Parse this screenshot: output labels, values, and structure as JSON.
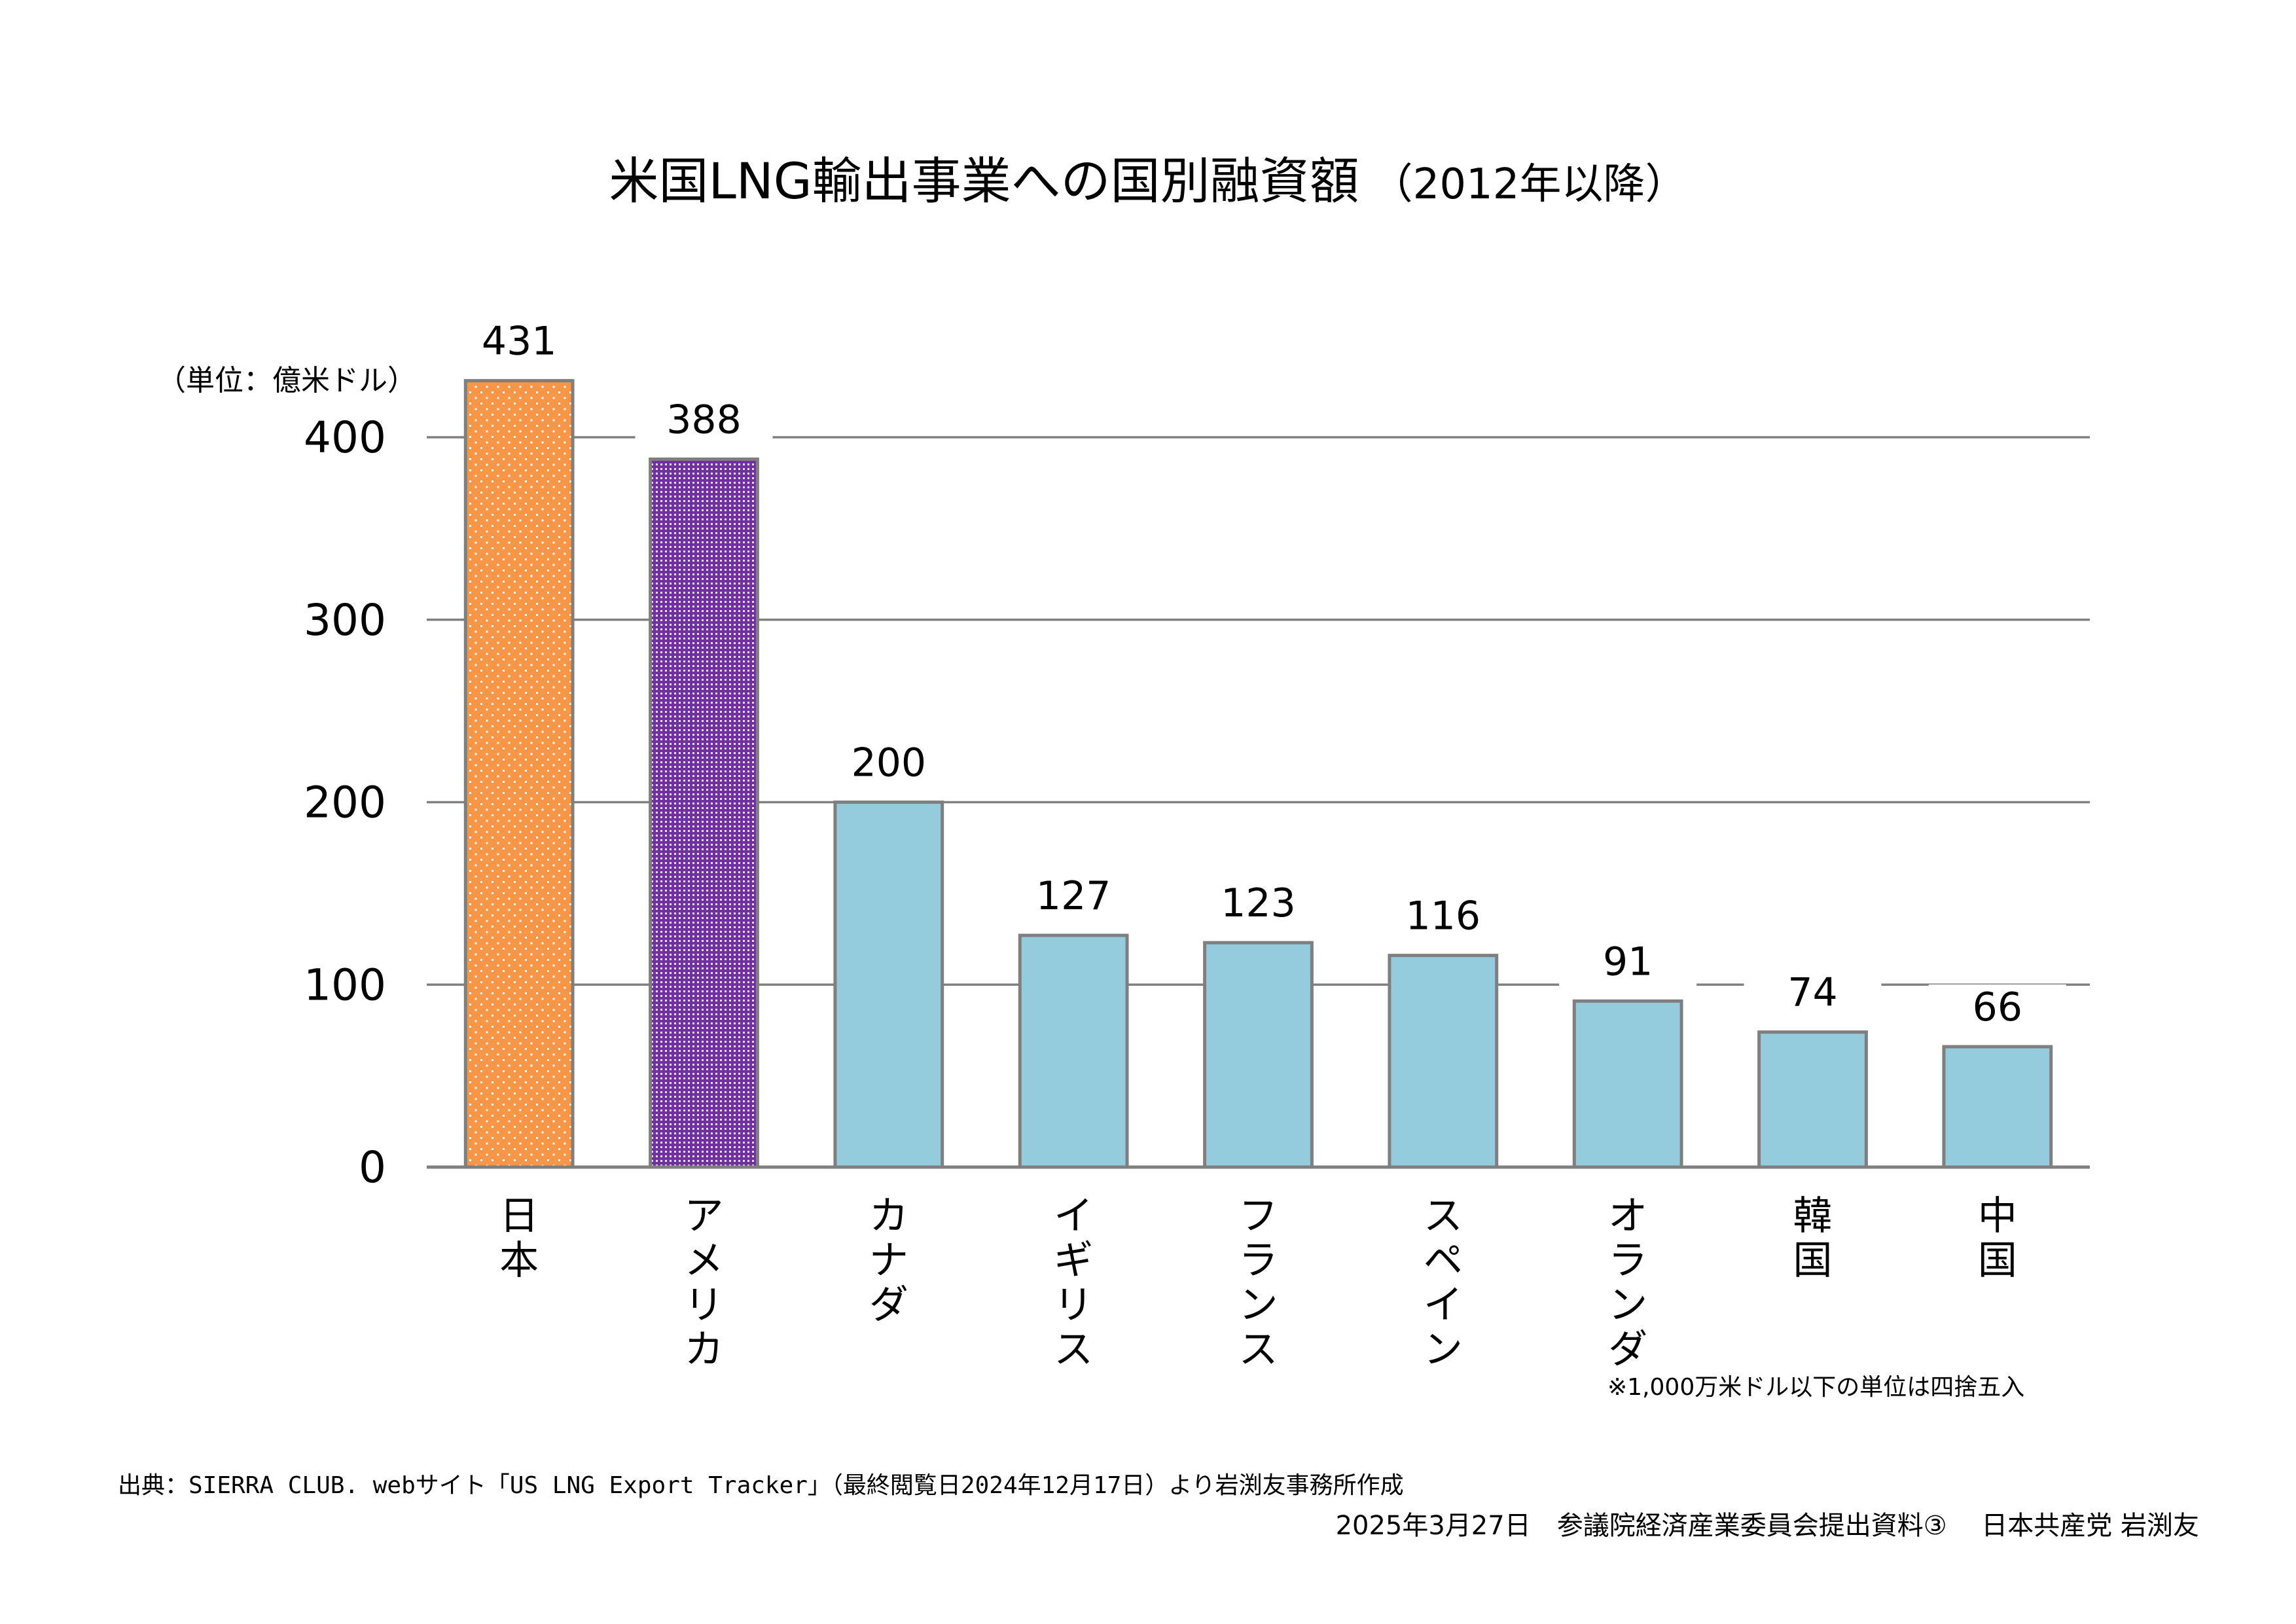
{
  "chart_data": {
    "type": "bar",
    "title": "米国LNG輸出事業への国別融資額",
    "subtitle": "（2012年以降）",
    "unit_label": "（単位：億米ドル）",
    "xlabel": "",
    "ylabel": "億米ドル",
    "categories": [
      "日本",
      "アメリカ",
      "カナダ",
      "イギリス",
      "フランス",
      "スペイン",
      "オランダ",
      "韓国",
      "中国"
    ],
    "values": [
      431,
      388,
      200,
      127,
      123,
      116,
      91,
      74,
      66
    ],
    "data_labels": [
      "431",
      "388",
      "200",
      "127",
      "123",
      "116",
      "91",
      "74",
      "66"
    ],
    "ylim": [
      0,
      400
    ],
    "yticks": [
      0,
      100,
      200,
      300,
      400
    ],
    "ytick_labels": [
      "0",
      "100",
      "200",
      "300",
      "400"
    ],
    "grid": true,
    "legend": "none",
    "bar_styles": [
      {
        "fill": "#F79646",
        "pattern": "dots"
      },
      {
        "fill": "#7030A0",
        "pattern": "checker"
      },
      {
        "fill": "#95CCDD",
        "pattern": "none"
      },
      {
        "fill": "#95CCDD",
        "pattern": "none"
      },
      {
        "fill": "#95CCDD",
        "pattern": "none"
      },
      {
        "fill": "#95CCDD",
        "pattern": "none"
      },
      {
        "fill": "#95CCDD",
        "pattern": "none"
      },
      {
        "fill": "#95CCDD",
        "pattern": "none"
      },
      {
        "fill": "#95CCDD",
        "pattern": "none"
      }
    ],
    "colors": {
      "bar_border": "#7F7F7F",
      "gridline": "#808080"
    }
  },
  "note": "※1,000万米ドル以下の単位は四捨五入",
  "source": "出典：SIERRA CLUB. webサイト「US LNG Export Tracker」（最終閲覧日2024年12月17日）より岩渕友事務所作成",
  "footer": "2025年3月27日　参議院経済産業委員会提出資料③　 日本共産党 岩渕友"
}
